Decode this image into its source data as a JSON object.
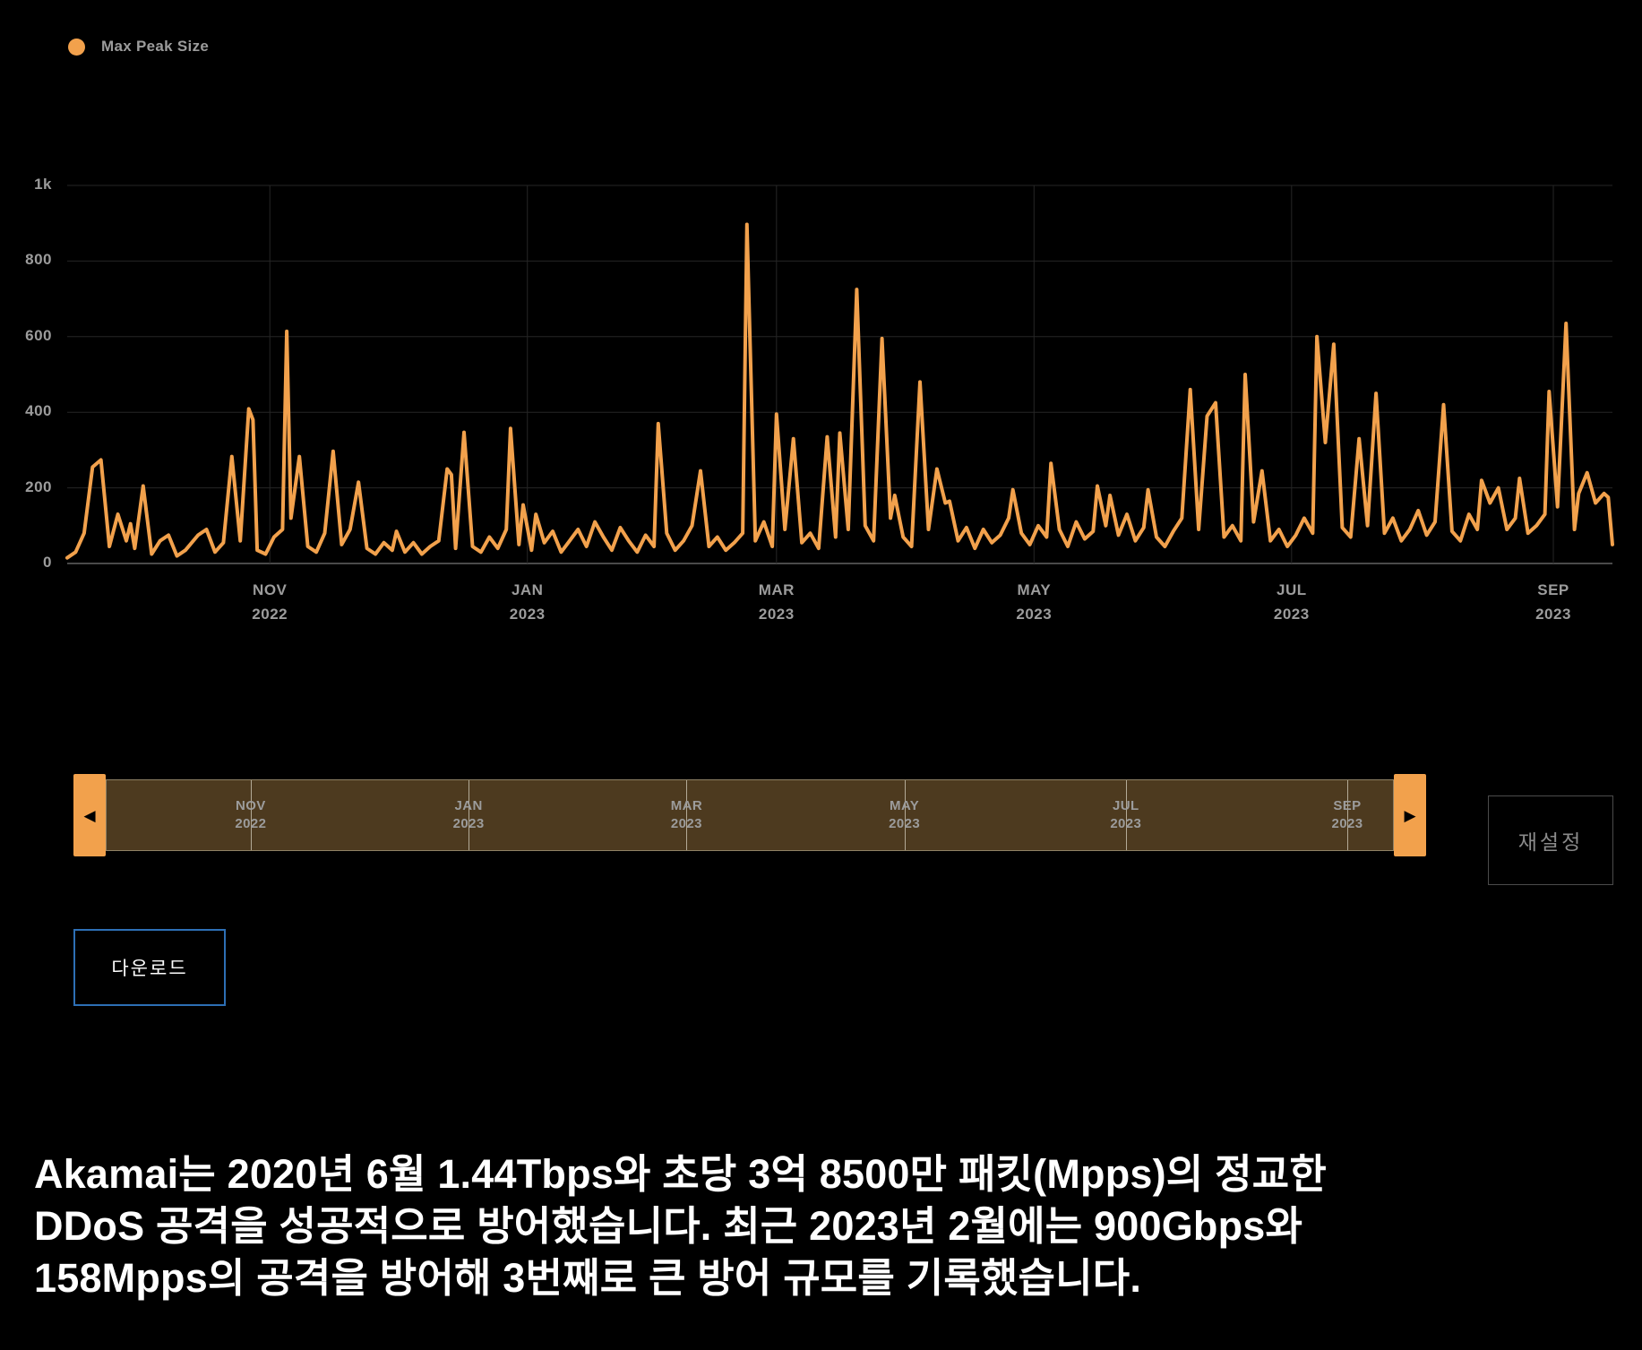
{
  "colors": {
    "background": "#000000",
    "accent_orange": "#F2A14C",
    "grid": "#262626",
    "baseline": "#4A4A4A",
    "axis_label": "#9C9C9C",
    "slider_track": "#4D3A1F",
    "slider_border": "#8F8165",
    "slider_tick": "#B3AA97",
    "reset_border": "#4B4B4B",
    "reset_text": "#8A8A8A",
    "download_border": "#2D6FB5"
  },
  "legend": {
    "label": "Max Peak Size",
    "color": "#F2A14C"
  },
  "chart_data": {
    "type": "line",
    "title": "",
    "xlabel": "",
    "ylabel": "",
    "ylim": [
      0,
      1000
    ],
    "x_range_days": 366,
    "grid": true,
    "legend_position": "top-left",
    "y_ticks": [
      {
        "v": 0,
        "label": "0"
      },
      {
        "v": 200,
        "label": "200"
      },
      {
        "v": 400,
        "label": "400"
      },
      {
        "v": 600,
        "label": "600"
      },
      {
        "v": 800,
        "label": "800"
      },
      {
        "v": 1000,
        "label": "1k"
      }
    ],
    "x_ticks": [
      {
        "day": 48,
        "line1": "NOV",
        "line2": "2022"
      },
      {
        "day": 109,
        "line1": "JAN",
        "line2": "2023"
      },
      {
        "day": 168,
        "line1": "MAR",
        "line2": "2023"
      },
      {
        "day": 229,
        "line1": "MAY",
        "line2": "2023"
      },
      {
        "day": 290,
        "line1": "JUL",
        "line2": "2023"
      },
      {
        "day": 352,
        "line1": "SEP",
        "line2": "2023"
      }
    ],
    "series": [
      {
        "name": "Max Peak Size",
        "color": "#F2A14C",
        "points": [
          [
            0,
            15
          ],
          [
            2,
            30
          ],
          [
            4,
            80
          ],
          [
            6,
            255
          ],
          [
            8,
            274
          ],
          [
            10,
            45
          ],
          [
            12,
            130
          ],
          [
            14,
            60
          ],
          [
            15,
            105
          ],
          [
            16,
            40
          ],
          [
            18,
            205
          ],
          [
            20,
            25
          ],
          [
            22,
            60
          ],
          [
            24,
            75
          ],
          [
            26,
            20
          ],
          [
            28,
            35
          ],
          [
            31,
            75
          ],
          [
            33,
            90
          ],
          [
            35,
            30
          ],
          [
            37,
            55
          ],
          [
            39,
            283
          ],
          [
            41,
            60
          ],
          [
            43,
            409
          ],
          [
            44,
            380
          ],
          [
            45,
            35
          ],
          [
            47,
            25
          ],
          [
            49,
            70
          ],
          [
            51,
            90
          ],
          [
            52,
            614
          ],
          [
            53,
            120
          ],
          [
            55,
            283
          ],
          [
            57,
            45
          ],
          [
            59,
            30
          ],
          [
            61,
            80
          ],
          [
            63,
            297
          ],
          [
            65,
            50
          ],
          [
            67,
            90
          ],
          [
            69,
            215
          ],
          [
            71,
            40
          ],
          [
            73,
            25
          ],
          [
            75,
            55
          ],
          [
            77,
            35
          ],
          [
            78,
            85
          ],
          [
            80,
            30
          ],
          [
            82,
            55
          ],
          [
            84,
            25
          ],
          [
            86,
            45
          ],
          [
            88,
            60
          ],
          [
            90,
            250
          ],
          [
            91,
            235
          ],
          [
            92,
            40
          ],
          [
            94,
            347
          ],
          [
            96,
            45
          ],
          [
            98,
            30
          ],
          [
            100,
            70
          ],
          [
            102,
            40
          ],
          [
            104,
            90
          ],
          [
            105,
            357
          ],
          [
            107,
            50
          ],
          [
            108,
            155
          ],
          [
            110,
            35
          ],
          [
            111,
            130
          ],
          [
            113,
            55
          ],
          [
            115,
            85
          ],
          [
            117,
            30
          ],
          [
            119,
            60
          ],
          [
            121,
            90
          ],
          [
            123,
            45
          ],
          [
            125,
            110
          ],
          [
            127,
            70
          ],
          [
            129,
            35
          ],
          [
            131,
            95
          ],
          [
            133,
            60
          ],
          [
            135,
            30
          ],
          [
            137,
            75
          ],
          [
            139,
            45
          ],
          [
            140,
            370
          ],
          [
            142,
            80
          ],
          [
            144,
            35
          ],
          [
            146,
            60
          ],
          [
            148,
            100
          ],
          [
            150,
            245
          ],
          [
            152,
            45
          ],
          [
            154,
            70
          ],
          [
            156,
            35
          ],
          [
            158,
            55
          ],
          [
            160,
            80
          ],
          [
            161,
            897
          ],
          [
            163,
            60
          ],
          [
            165,
            110
          ],
          [
            167,
            45
          ],
          [
            168,
            395
          ],
          [
            170,
            90
          ],
          [
            172,
            330
          ],
          [
            174,
            55
          ],
          [
            176,
            80
          ],
          [
            178,
            40
          ],
          [
            180,
            335
          ],
          [
            182,
            70
          ],
          [
            183,
            345
          ],
          [
            185,
            90
          ],
          [
            187,
            725
          ],
          [
            189,
            100
          ],
          [
            191,
            60
          ],
          [
            193,
            595
          ],
          [
            195,
            120
          ],
          [
            196,
            180
          ],
          [
            198,
            70
          ],
          [
            200,
            45
          ],
          [
            202,
            480
          ],
          [
            204,
            90
          ],
          [
            206,
            250
          ],
          [
            208,
            160
          ],
          [
            209,
            165
          ],
          [
            211,
            60
          ],
          [
            213,
            95
          ],
          [
            215,
            40
          ],
          [
            217,
            90
          ],
          [
            219,
            55
          ],
          [
            221,
            75
          ],
          [
            223,
            120
          ],
          [
            224,
            195
          ],
          [
            226,
            80
          ],
          [
            228,
            50
          ],
          [
            230,
            100
          ],
          [
            232,
            70
          ],
          [
            233,
            265
          ],
          [
            235,
            90
          ],
          [
            237,
            45
          ],
          [
            239,
            110
          ],
          [
            241,
            65
          ],
          [
            243,
            85
          ],
          [
            244,
            205
          ],
          [
            246,
            100
          ],
          [
            247,
            180
          ],
          [
            249,
            75
          ],
          [
            251,
            130
          ],
          [
            253,
            60
          ],
          [
            255,
            95
          ],
          [
            256,
            195
          ],
          [
            258,
            70
          ],
          [
            260,
            45
          ],
          [
            262,
            85
          ],
          [
            264,
            120
          ],
          [
            266,
            460
          ],
          [
            268,
            90
          ],
          [
            270,
            390
          ],
          [
            272,
            425
          ],
          [
            274,
            70
          ],
          [
            276,
            100
          ],
          [
            278,
            60
          ],
          [
            279,
            500
          ],
          [
            281,
            110
          ],
          [
            283,
            245
          ],
          [
            285,
            60
          ],
          [
            287,
            90
          ],
          [
            289,
            45
          ],
          [
            291,
            75
          ],
          [
            293,
            120
          ],
          [
            295,
            80
          ],
          [
            296,
            600
          ],
          [
            298,
            320
          ],
          [
            300,
            580
          ],
          [
            302,
            95
          ],
          [
            304,
            70
          ],
          [
            306,
            330
          ],
          [
            308,
            100
          ],
          [
            310,
            450
          ],
          [
            312,
            80
          ],
          [
            314,
            120
          ],
          [
            316,
            60
          ],
          [
            318,
            90
          ],
          [
            320,
            140
          ],
          [
            322,
            75
          ],
          [
            324,
            110
          ],
          [
            326,
            420
          ],
          [
            328,
            85
          ],
          [
            330,
            60
          ],
          [
            332,
            130
          ],
          [
            334,
            90
          ],
          [
            335,
            220
          ],
          [
            337,
            160
          ],
          [
            339,
            200
          ],
          [
            341,
            90
          ],
          [
            343,
            120
          ],
          [
            344,
            225
          ],
          [
            346,
            80
          ],
          [
            348,
            100
          ],
          [
            350,
            130
          ],
          [
            351,
            455
          ],
          [
            353,
            150
          ],
          [
            355,
            635
          ],
          [
            357,
            90
          ],
          [
            358,
            185
          ],
          [
            360,
            240
          ],
          [
            362,
            160
          ],
          [
            364,
            185
          ],
          [
            365,
            175
          ],
          [
            366,
            50
          ]
        ]
      }
    ]
  },
  "slider": {
    "left_arrow": "◀",
    "right_arrow": "▶",
    "ticks": [
      {
        "day": 41,
        "line1": "NOV",
        "line2": "2022"
      },
      {
        "day": 103,
        "line1": "JAN",
        "line2": "2023"
      },
      {
        "day": 165,
        "line1": "MAR",
        "line2": "2023"
      },
      {
        "day": 227,
        "line1": "MAY",
        "line2": "2023"
      },
      {
        "day": 290,
        "line1": "JUL",
        "line2": "2023"
      },
      {
        "day": 353,
        "line1": "SEP",
        "line2": "2023"
      }
    ]
  },
  "buttons": {
    "reset_label": "재설정",
    "download_label": "다운로드"
  },
  "caption": {
    "line1": "Akamai는 2020년 6월 1.44Tbps와 초당 3억 8500만 패킷(Mpps)의 정교한",
    "line2": "DDoS 공격을 성공적으로 방어했습니다. 최근 2023년 2월에는 900Gbps와",
    "line3": "158Mpps의 공격을 방어해 3번째로 큰 방어 규모를 기록했습니다."
  }
}
